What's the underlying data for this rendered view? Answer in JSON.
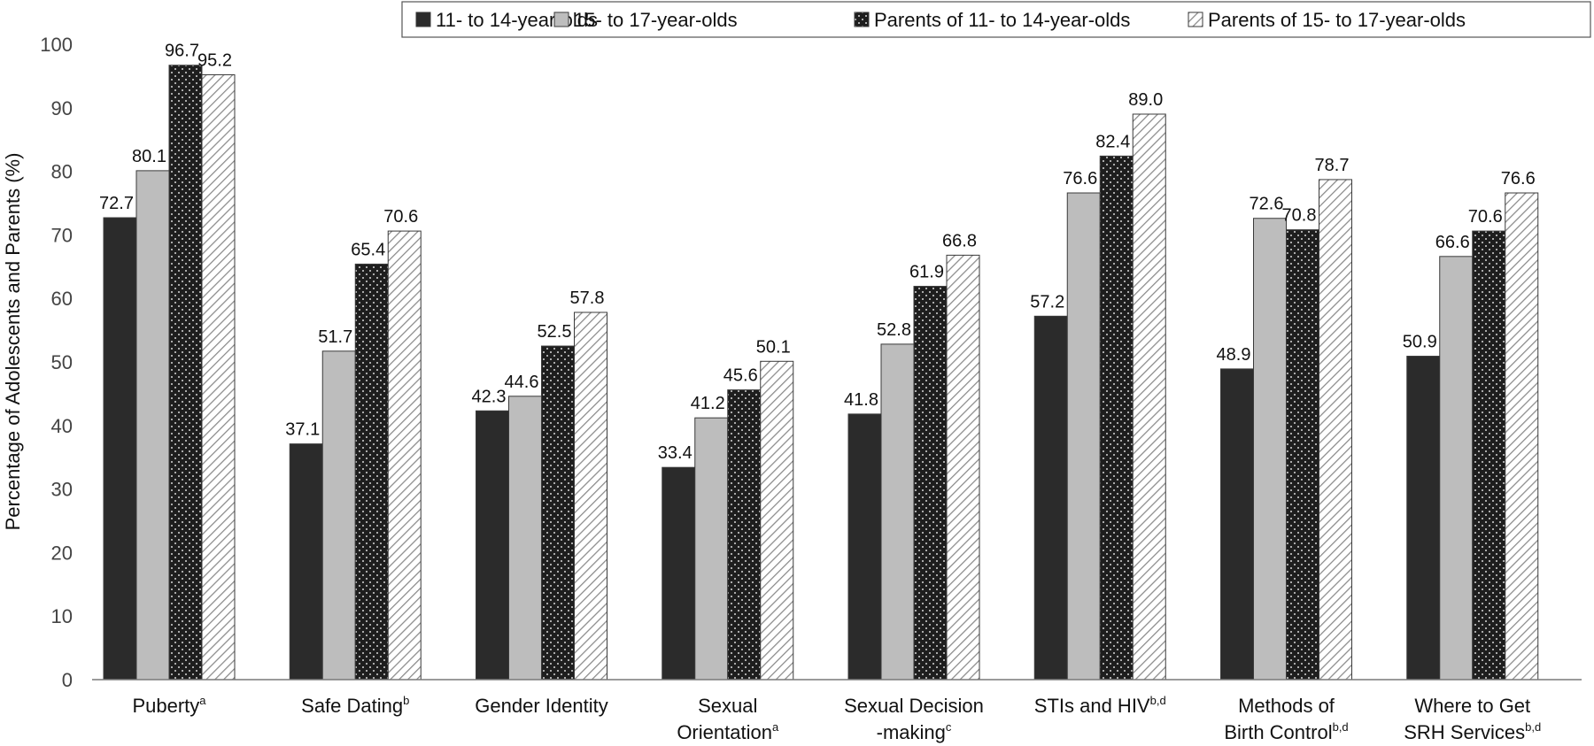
{
  "chart_data": {
    "type": "bar",
    "ylabel": "Percentage of Adolescents and Parents (%)",
    "ylim": [
      0,
      100
    ],
    "yticks": [
      0,
      10,
      20,
      30,
      40,
      50,
      60,
      70,
      80,
      90,
      100
    ],
    "grid": false,
    "legend_position": "top-right",
    "categories": [
      {
        "main": "Puberty",
        "sup": "a"
      },
      {
        "main": "Safe Dating",
        "sup": "b"
      },
      {
        "main": "Gender Identity",
        "sup": ""
      },
      {
        "main": "Sexual\nOrientation",
        "sup": "a"
      },
      {
        "main": "Sexual Decision\n-making",
        "sup": "c"
      },
      {
        "main": "STIs and HIV",
        "sup": "b,d"
      },
      {
        "main": "Methods of\nBirth Control",
        "sup": "b,d"
      },
      {
        "main": "Where to Get\nSRH Services",
        "sup": "b,d"
      }
    ],
    "series": [
      {
        "name": "11- to 14-year-olds",
        "pattern": "solid",
        "color": "#2b2b2b",
        "values": [
          72.7,
          37.1,
          42.3,
          33.4,
          41.8,
          57.2,
          48.9,
          50.9
        ]
      },
      {
        "name": "15- to 17-year-olds",
        "pattern": "solid",
        "color": "#bdbdbd",
        "values": [
          80.1,
          51.7,
          44.6,
          41.2,
          52.8,
          76.6,
          72.6,
          66.6
        ]
      },
      {
        "name": "Parents of 11- to 14-year-olds",
        "pattern": "dots",
        "color": "#1e1e1e",
        "values": [
          96.7,
          65.4,
          52.5,
          45.6,
          61.9,
          82.4,
          70.8,
          70.6
        ]
      },
      {
        "name": "Parents of 15- to 17-year-olds",
        "pattern": "hatch",
        "color": "#ffffff",
        "values": [
          95.2,
          70.6,
          57.8,
          50.1,
          66.8,
          89.0,
          78.7,
          76.6
        ]
      }
    ]
  }
}
